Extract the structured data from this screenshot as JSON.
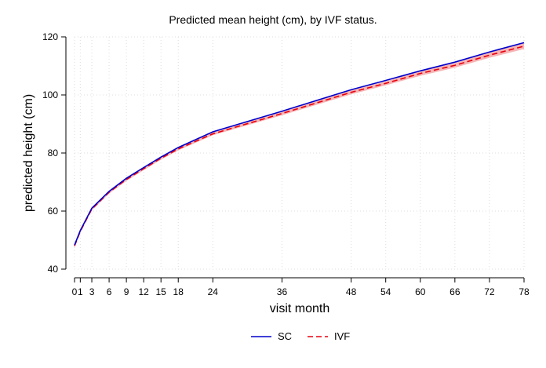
{
  "chart_data": {
    "type": "line",
    "title": "Predicted mean height (cm), by IVF status.",
    "xlabel": "visit month",
    "ylabel": "predicted height (cm)",
    "x_ticks": [
      0,
      1,
      3,
      6,
      9,
      12,
      15,
      18,
      24,
      36,
      48,
      54,
      60,
      66,
      72,
      78
    ],
    "x_tick_labels": [
      "0",
      "1",
      "3",
      "6",
      "9",
      "12",
      "15",
      "18",
      "24",
      "36",
      "48",
      "54",
      "60",
      "66",
      "72",
      "78"
    ],
    "y_ticks": [
      40,
      60,
      80,
      100,
      120
    ],
    "y_tick_labels": [
      "40",
      "60",
      "80",
      "100",
      "120"
    ],
    "xlim": [
      0,
      78
    ],
    "ylim": [
      40,
      120
    ],
    "grid": true,
    "legend_position": "bottom-center",
    "x": [
      0,
      1,
      3,
      6,
      9,
      12,
      15,
      18,
      24,
      36,
      48,
      54,
      60,
      66,
      72,
      78
    ],
    "series": [
      {
        "name": "SC",
        "color": "#0000cc",
        "style": "solid",
        "values": [
          48.3,
          53.3,
          61.0,
          66.8,
          71.3,
          75.0,
          78.6,
          81.9,
          87.3,
          94.4,
          101.8,
          105.0,
          108.3,
          111.3,
          114.8,
          118.0
        ]
      },
      {
        "name": "IVF",
        "color": "#e8000f",
        "style": "dashed",
        "band_color": "#f4a3a3",
        "values": [
          48.0,
          53.0,
          60.7,
          66.5,
          70.9,
          74.6,
          78.2,
          81.4,
          86.6,
          93.6,
          100.9,
          104.0,
          107.4,
          110.2,
          113.7,
          116.8
        ],
        "ci_lower": [
          47.5,
          52.5,
          60.2,
          66.0,
          70.4,
          74.1,
          77.7,
          80.9,
          86.1,
          93.0,
          100.2,
          103.3,
          106.6,
          109.4,
          112.8,
          115.8
        ],
        "ci_upper": [
          48.5,
          53.5,
          61.2,
          67.0,
          71.4,
          75.1,
          78.7,
          81.9,
          87.1,
          94.2,
          101.6,
          104.7,
          108.2,
          111.0,
          114.6,
          117.8
        ]
      }
    ]
  }
}
